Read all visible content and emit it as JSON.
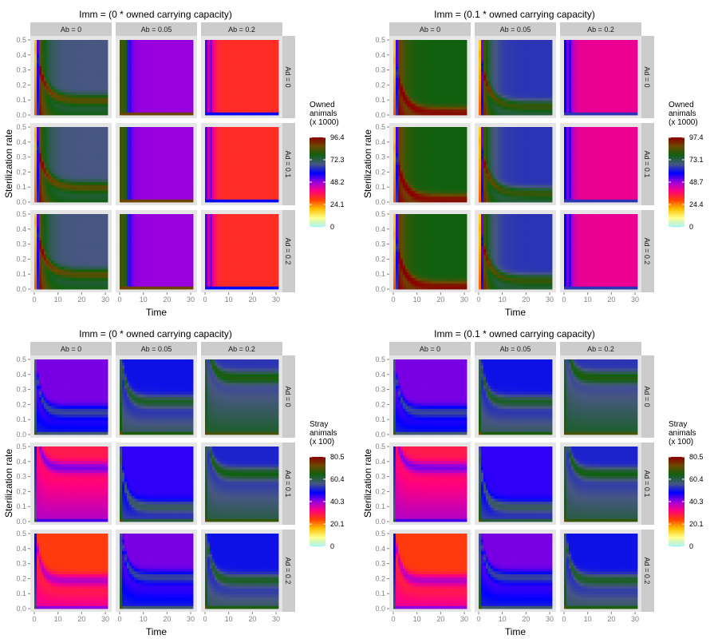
{
  "chart_data": [
    {
      "type": "heatmap",
      "title": "Imm = (0 * owned carrying capacity)",
      "xlabel": "Time",
      "ylabel": "Sterilization rate",
      "xlim": [
        0,
        31
      ],
      "ylim": [
        0,
        0.5
      ],
      "x_ticks": [
        "0",
        "10",
        "20",
        "30"
      ],
      "y_ticks": [
        "0.0",
        "0.1",
        "0.2",
        "0.3",
        "0.4",
        "0.5"
      ],
      "facet_cols": [
        "Ab = 0",
        "Ab = 0.05",
        "Ab = 0.2"
      ],
      "facet_rows": [
        "Ad = 0",
        "Ad = 0.1",
        "Ad = 0.2"
      ],
      "legend": {
        "title": [
          "Owned",
          "animals",
          "(x 1000)"
        ],
        "breaks": [
          "96.4",
          "72.3",
          "48.2",
          "24.1",
          "0"
        ],
        "max": 96.4,
        "position": "right"
      },
      "panels": [
        [
          {
            "pattern": "decay",
            "base": 70,
            "band": 0.1,
            "start": 0,
            "early": 92
          },
          {
            "pattern": "edge",
            "base": 50,
            "start": 0,
            "early": 85
          },
          {
            "pattern": "edge",
            "base": 33,
            "start": 0,
            "early": 55,
            "spike": 45
          }
        ],
        [
          {
            "pattern": "decay",
            "base": 70,
            "band": 0.1,
            "start": 0,
            "early": 92
          },
          {
            "pattern": "edge",
            "base": 50,
            "start": 0,
            "early": 85
          },
          {
            "pattern": "edge",
            "base": 33,
            "start": 0,
            "early": 55,
            "spike": 45
          }
        ],
        [
          {
            "pattern": "decay",
            "base": 70,
            "band": 0.1,
            "start": 0,
            "early": 92
          },
          {
            "pattern": "edge",
            "base": 50,
            "start": 0,
            "early": 85
          },
          {
            "pattern": "edge",
            "base": 33,
            "start": 0,
            "early": 55,
            "spike": 45
          }
        ]
      ]
    },
    {
      "type": "heatmap",
      "title": "Imm = (0.1 * owned carrying capacity)",
      "xlabel": "Time",
      "ylabel": "Sterilization rate",
      "xlim": [
        0,
        31
      ],
      "ylim": [
        0,
        0.5
      ],
      "x_ticks": [
        "0",
        "10",
        "20",
        "30"
      ],
      "y_ticks": [
        "0.0",
        "0.1",
        "0.2",
        "0.3",
        "0.4",
        "0.5"
      ],
      "facet_cols": [
        "Ab = 0",
        "Ab = 0.05",
        "Ab = 0.2"
      ],
      "facet_rows": [
        "Ad = 0",
        "Ad = 0.1",
        "Ad = 0.2"
      ],
      "legend": {
        "title": [
          "Owned",
          "animals",
          "(x 1000)"
        ],
        "breaks": [
          "97.4",
          "73.1",
          "48.7",
          "24.4",
          "0"
        ],
        "max": 97.4,
        "position": "right"
      },
      "panels": [
        [
          {
            "pattern": "decay",
            "base": 80,
            "band": 0.02,
            "start": 0,
            "early": 94
          },
          {
            "pattern": "decay",
            "base": 66,
            "band": 0.06,
            "start": 0,
            "early": 88
          },
          {
            "pattern": "edge",
            "base": 42,
            "start": 0,
            "early": 60,
            "spike": 52
          }
        ],
        [
          {
            "pattern": "decay",
            "base": 80,
            "band": 0.02,
            "start": 0,
            "early": 94
          },
          {
            "pattern": "decay",
            "base": 66,
            "band": 0.06,
            "start": 0,
            "early": 88
          },
          {
            "pattern": "edge",
            "base": 42,
            "start": 0,
            "early": 60,
            "spike": 52
          }
        ],
        [
          {
            "pattern": "decay",
            "base": 80,
            "band": 0.02,
            "start": 0,
            "early": 94
          },
          {
            "pattern": "decay",
            "base": 66,
            "band": 0.06,
            "start": 0,
            "early": 88
          },
          {
            "pattern": "edge",
            "base": 42,
            "start": 0,
            "early": 60,
            "spike": 52
          }
        ]
      ]
    },
    {
      "type": "heatmap",
      "title": "Imm = (0 * owned carrying capacity)",
      "xlabel": "Time",
      "ylabel": "Sterilization rate",
      "xlim": [
        0,
        31
      ],
      "ylim": [
        0,
        0.5
      ],
      "x_ticks": [
        "0",
        "10",
        "20",
        "30"
      ],
      "y_ticks": [
        "0.0",
        "0.1",
        "0.2",
        "0.3",
        "0.4",
        "0.5"
      ],
      "facet_cols": [
        "Ab = 0",
        "Ab = 0.05",
        "Ab = 0.2"
      ],
      "facet_rows": [
        "Ad = 0",
        "Ad = 0.1",
        "Ad = 0.2"
      ],
      "legend": {
        "title": [
          "Stray",
          "animals",
          "(x 100)"
        ],
        "breaks": [
          "80.5",
          "60.4",
          "40.3",
          "20.1",
          "0"
        ],
        "max": 80.5,
        "position": "right"
      },
      "panels": [
        [
          {
            "pattern": "stray",
            "base": 52,
            "band": 0.15,
            "start": 76
          },
          {
            "pattern": "stray",
            "base": 62,
            "band": 0.22,
            "start": 76
          },
          {
            "pattern": "stray",
            "base": 66,
            "band": 0.38,
            "start": 76
          }
        ],
        [
          {
            "pattern": "stray",
            "base": 36,
            "band": 0.36,
            "start": 76
          },
          {
            "pattern": "stray",
            "base": 57,
            "band": 0.1,
            "start": 76
          },
          {
            "pattern": "stray",
            "base": 64,
            "band": 0.32,
            "start": 76
          }
        ],
        [
          {
            "pattern": "stray",
            "base": 31,
            "band": 0.19,
            "start": 76
          },
          {
            "pattern": "stray",
            "base": 52,
            "band": 0.21,
            "start": 76
          },
          {
            "pattern": "stray",
            "base": 62,
            "band": 0.19,
            "start": 76
          }
        ]
      ]
    },
    {
      "type": "heatmap",
      "title": "Imm = (0.1 * owned carrying capacity)",
      "xlabel": "Time",
      "ylabel": "Sterilization rate",
      "xlim": [
        0,
        31
      ],
      "ylim": [
        0,
        0.5
      ],
      "x_ticks": [
        "0",
        "10",
        "20",
        "30"
      ],
      "y_ticks": [
        "0.0",
        "0.1",
        "0.2",
        "0.3",
        "0.4",
        "0.5"
      ],
      "facet_cols": [
        "Ab = 0",
        "Ab = 0.05",
        "Ab = 0.2"
      ],
      "facet_rows": [
        "Ad = 0",
        "Ad = 0.1",
        "Ad = 0.2"
      ],
      "legend": {
        "title": [
          "Stray",
          "animals",
          "(x 100)"
        ],
        "breaks": [
          "80.5",
          "60.4",
          "40.3",
          "20.1",
          "0"
        ],
        "max": 80.5,
        "position": "right"
      },
      "panels": [
        [
          {
            "pattern": "stray",
            "base": 52,
            "band": 0.15,
            "start": 76
          },
          {
            "pattern": "stray",
            "base": 62,
            "band": 0.22,
            "start": 76
          },
          {
            "pattern": "stray",
            "base": 66,
            "band": 0.38,
            "start": 76
          }
        ],
        [
          {
            "pattern": "stray",
            "base": 36,
            "band": 0.36,
            "start": 76
          },
          {
            "pattern": "stray",
            "base": 57,
            "band": 0.1,
            "start": 76
          },
          {
            "pattern": "stray",
            "base": 64,
            "band": 0.32,
            "start": 76
          }
        ],
        [
          {
            "pattern": "stray",
            "base": 31,
            "band": 0.19,
            "start": 76
          },
          {
            "pattern": "stray",
            "base": 52,
            "band": 0.21,
            "start": 76
          },
          {
            "pattern": "stray",
            "base": 62,
            "band": 0.19,
            "start": 76
          }
        ]
      ]
    }
  ],
  "colors": {
    "strip_fill": "#cccccc",
    "panel_bg": "#e5e5e5",
    "tick_label": "#808080",
    "scale": [
      "#aaf3f3",
      "#ffff8c",
      "#ffc000",
      "#ff4000",
      "#ff0080",
      "#9900dd",
      "#0000ff",
      "#475782",
      "#106010",
      "#6a4a00",
      "#8a0000"
    ]
  }
}
